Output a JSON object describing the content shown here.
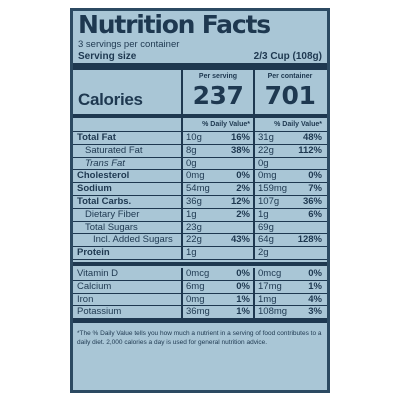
{
  "label": {
    "title": "Nutrition Facts",
    "servings_per_container": "3 servings per container",
    "serving_size_label": "Serving size",
    "serving_size_value": "2/3 Cup (108g)",
    "calories_label": "Calories",
    "per_serving_header": "Per serving",
    "per_container_header": "Per container",
    "calories_per_serving": "237",
    "calories_per_container": "701",
    "dv_header": "% Daily Value*",
    "rows": [
      {
        "name": "Total Fat",
        "amt1": "10g",
        "pct1": "16%",
        "amt2": "31g",
        "pct2": "48%",
        "bold": true
      },
      {
        "name": "Saturated Fat",
        "amt1": "8g",
        "pct1": "38%",
        "amt2": "22g",
        "pct2": "112%",
        "indent": 1
      },
      {
        "name": "Trans Fat",
        "amt1": "0g",
        "pct1": "",
        "amt2": "0g",
        "pct2": "",
        "indent": 1,
        "italic": true
      },
      {
        "name": "Cholesterol",
        "amt1": "0mg",
        "pct1": "0%",
        "amt2": "0mg",
        "pct2": "0%",
        "bold": true
      },
      {
        "name": "Sodium",
        "amt1": "54mg",
        "pct1": "2%",
        "amt2": "159mg",
        "pct2": "7%",
        "bold": true
      },
      {
        "name": "Total Carbs.",
        "amt1": "36g",
        "pct1": "12%",
        "amt2": "107g",
        "pct2": "36%",
        "bold": true
      },
      {
        "name": "Dietary Fiber",
        "amt1": "1g",
        "pct1": "2%",
        "amt2": "1g",
        "pct2": "6%",
        "indent": 1
      },
      {
        "name": "Total Sugars",
        "amt1": "23g",
        "pct1": "",
        "amt2": "69g",
        "pct2": "",
        "indent": 1
      },
      {
        "name": "Incl. Added Sugars",
        "amt1": "22g",
        "pct1": "43%",
        "amt2": "64g",
        "pct2": "128%",
        "indent": 2
      },
      {
        "name": "Protein",
        "amt1": "1g",
        "pct1": "",
        "amt2": "2g",
        "pct2": "",
        "bold": true
      }
    ],
    "vitamin_rows": [
      {
        "name": "Vitamin D",
        "amt1": "0mcg",
        "pct1": "0%",
        "amt2": "0mcg",
        "pct2": "0%"
      },
      {
        "name": "Calcium",
        "amt1": "6mg",
        "pct1": "0%",
        "amt2": "17mg",
        "pct2": "1%"
      },
      {
        "name": "Iron",
        "amt1": "0mg",
        "pct1": "1%",
        "amt2": "1mg",
        "pct2": "4%"
      },
      {
        "name": "Potassium",
        "amt1": "36mg",
        "pct1": "1%",
        "amt2": "108mg",
        "pct2": "3%"
      }
    ],
    "footnote": "*The % Daily Value tells you how much a nutrient in a serving of food contributes to a daily diet. 2,000 calories a day is used for general nutrition advice."
  }
}
